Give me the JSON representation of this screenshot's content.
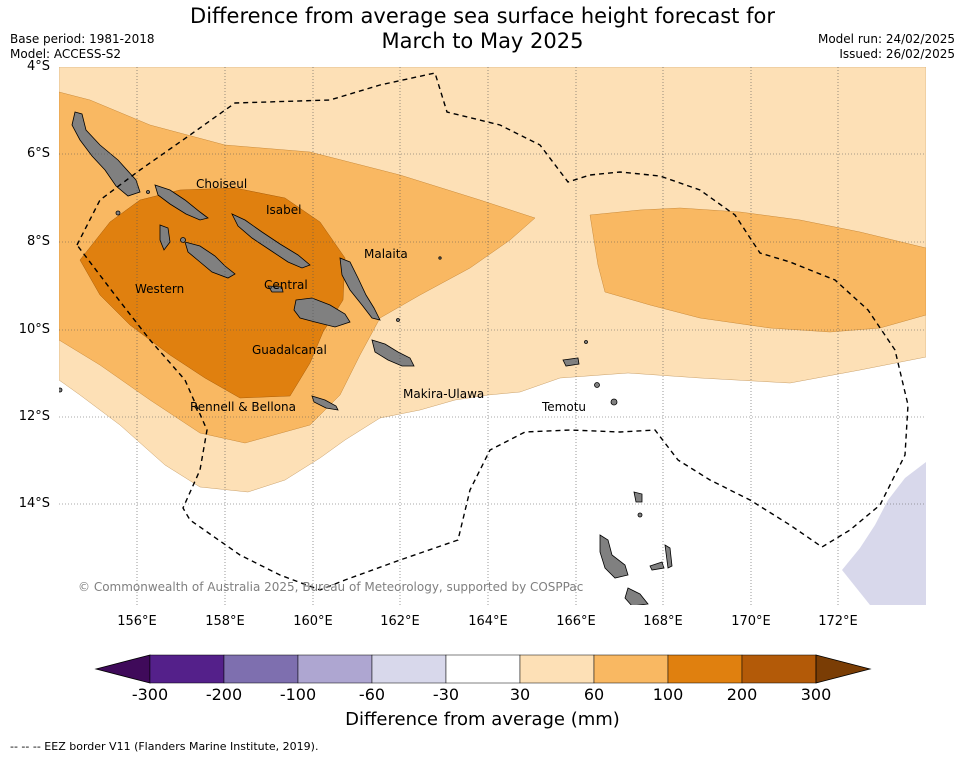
{
  "title_line1": "Difference from average sea surface height forecast for",
  "title_line2": "March to May 2025",
  "meta_left": {
    "base_period": "Base period: 1981-2018",
    "model": "Model: ACCESS-S2"
  },
  "meta_right": {
    "model_run": "Model run: 24/02/2025",
    "issued": "Issued: 26/02/2025"
  },
  "map": {
    "lat_labels": [
      "4°S",
      "6°S",
      "8°S",
      "10°S",
      "12°S",
      "14°S"
    ],
    "lon_labels": [
      "156°E",
      "158°E",
      "160°E",
      "162°E",
      "164°E",
      "166°E",
      "168°E",
      "170°E",
      "172°E"
    ],
    "places": [
      "Choiseul",
      "Isabel",
      "Malaita",
      "Western",
      "Central",
      "Guadalcanal",
      "Makira-Ulawa",
      "Rennell & Bellona",
      "Temotu"
    ],
    "copyright": "© Commonwealth of Australia 2025, Bureau of Meteorology, supported by COSPPac"
  },
  "colorbar": {
    "ticks": [
      "-300",
      "-200",
      "-100",
      "-60",
      "-30",
      "30",
      "60",
      "100",
      "200",
      "300"
    ],
    "colors": [
      "#3f0a5a",
      "#54208a",
      "#7e6faf",
      "#aea6d1",
      "#d8d8eb",
      "#ffffff",
      "#fde0b6",
      "#f9b862",
      "#e0800f",
      "#b35a08",
      "#7a3d05"
    ],
    "label": "Difference from average (mm)"
  },
  "legend_note": "--  --  -- EEZ border V11 (Flanders Marine Institute, 2019)."
}
